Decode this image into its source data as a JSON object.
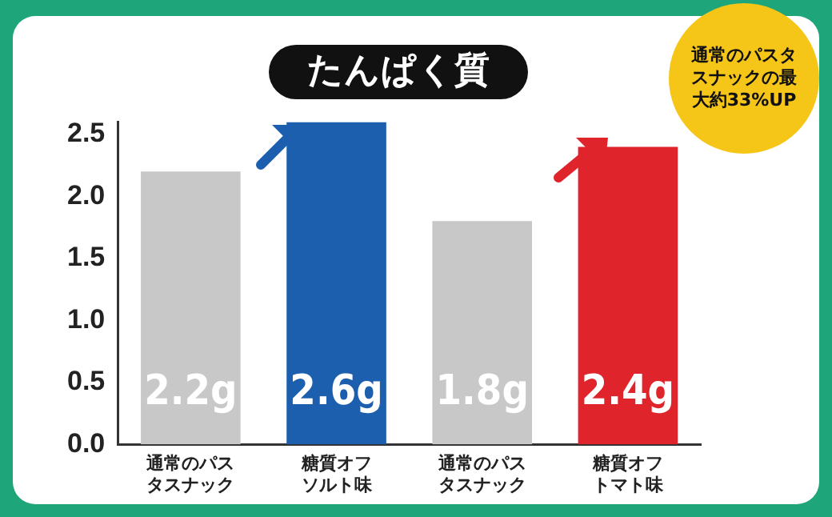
{
  "chart_data": {
    "type": "bar",
    "title": "たんぱく質",
    "categories": [
      "通常のパスタスナック",
      "糖質オフソルト味",
      "通常のパスタスナック",
      "糖質オフトマト味"
    ],
    "values": [
      2.2,
      2.6,
      1.8,
      2.4
    ],
    "colors": [
      "#c8c8c8",
      "#1b5fae",
      "#c8c8c8",
      "#e0242c"
    ],
    "value_labels": [
      "2.2g",
      "2.6g",
      "1.8g",
      "2.4g"
    ],
    "ylim": [
      0,
      2.6
    ],
    "yticks": [
      {
        "value": 0,
        "label": "0.0"
      },
      {
        "value": 0.5,
        "label": "0.5"
      },
      {
        "value": 1,
        "label": "1.0"
      },
      {
        "value": 1.5,
        "label": "1.5"
      },
      {
        "value": 2,
        "label": "2.0"
      },
      {
        "value": 2.5,
        "label": "2.5"
      }
    ],
    "grid": false,
    "legend": false,
    "annotations": [
      "通常のパスタスナックの最大約33%UP"
    ]
  }
}
